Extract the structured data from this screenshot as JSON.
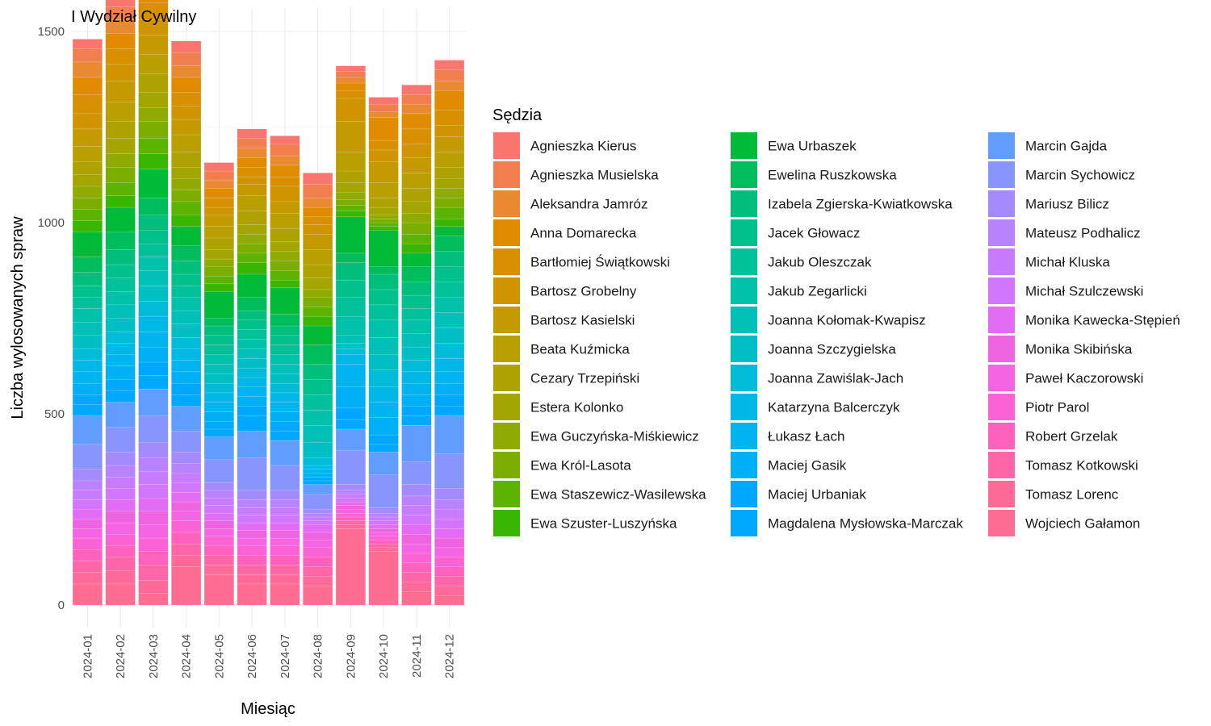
{
  "chart_data": {
    "type": "bar",
    "stacked": true,
    "title": "I Wydział Cywilny",
    "xlabel": "Miesiąc",
    "ylabel": "Liczba wylosowanych spraw",
    "ylim": [
      0,
      1500
    ],
    "yticks": [
      0,
      500,
      1000,
      1500
    ],
    "grid": true,
    "legend_title": "Sędzia",
    "legend_position": "right",
    "categories": [
      "2024-01",
      "2024-02",
      "2024-03",
      "2024-04",
      "2024-05",
      "2024-06",
      "2024-07",
      "2024-08",
      "2024-09",
      "2024-10",
      "2024-11",
      "2024-12"
    ],
    "series": [
      {
        "name": "Agnieszka Kierus",
        "color": "#F8766D",
        "values": [
          25,
          30,
          45,
          30,
          22,
          25,
          22,
          30,
          15,
          18,
          25,
          25
        ]
      },
      {
        "name": "Agnieszka Musielska",
        "color": "#F17E4F",
        "values": [
          35,
          35,
          40,
          35,
          25,
          25,
          30,
          35,
          15,
          20,
          25,
          30
        ]
      },
      {
        "name": "Aleksandra Jamróz",
        "color": "#E98A33",
        "values": [
          40,
          35,
          40,
          30,
          20,
          25,
          25,
          25,
          15,
          15,
          25,
          25
        ]
      },
      {
        "name": "Anna Domarecka",
        "color": "#E08B00",
        "values": [
          45,
          40,
          45,
          40,
          25,
          25,
          30,
          25,
          20,
          60,
          40,
          50
        ]
      },
      {
        "name": "Bartłomiej Świątkowski",
        "color": "#D89000",
        "values": [
          50,
          40,
          45,
          35,
          25,
          25,
          25,
          20,
          20,
          25,
          40,
          40
        ]
      },
      {
        "name": "Bartosz Grobelny",
        "color": "#CF9400",
        "values": [
          40,
          45,
          40,
          35,
          20,
          20,
          40,
          25,
          60,
          30,
          35,
          30
        ]
      },
      {
        "name": "Bartosz Kasielski",
        "color": "#C49A00",
        "values": [
          45,
          55,
          50,
          40,
          30,
          30,
          30,
          40,
          80,
          55,
          40,
          40
        ]
      },
      {
        "name": "Beata Kuźmicka",
        "color": "#B9A000",
        "values": [
          40,
          50,
          50,
          45,
          30,
          40,
          40,
          40,
          50,
          40,
          40,
          40
        ]
      },
      {
        "name": "Cezary Trzepiński",
        "color": "#AEA200",
        "values": [
          35,
          45,
          50,
          40,
          30,
          35,
          35,
          35,
          30,
          25,
          35,
          30
        ]
      },
      {
        "name": "Estera Kolonko",
        "color": "#A3A500",
        "values": [
          30,
          40,
          40,
          30,
          25,
          25,
          25,
          30,
          25,
          20,
          30,
          25
        ]
      },
      {
        "name": "Ewa Guczyńska-Miśkiewicz",
        "color": "#8FAA00",
        "values": [
          30,
          35,
          35,
          30,
          20,
          25,
          25,
          20,
          20,
          10,
          25,
          25
        ]
      },
      {
        "name": "Ewa Król-Lasota",
        "color": "#7CAE00",
        "values": [
          30,
          40,
          45,
          30,
          25,
          25,
          25,
          25,
          15,
          10,
          30,
          25
        ]
      },
      {
        "name": "Ewa Staszewicz-Wasilewska",
        "color": "#5CB300",
        "values": [
          30,
          35,
          40,
          35,
          20,
          25,
          25,
          25,
          15,
          10,
          25,
          30
        ]
      },
      {
        "name": "Ewa Szuster-Luszyńska",
        "color": "#39B600",
        "values": [
          30,
          30,
          40,
          30,
          20,
          30,
          20,
          25,
          15,
          10,
          25,
          20
        ]
      },
      {
        "name": "Ewa Urbaszek",
        "color": "#00BA38",
        "values": [
          65,
          65,
          75,
          50,
          70,
          60,
          70,
          50,
          95,
          95,
          35,
          25
        ]
      },
      {
        "name": "Ewelina Ruszkowska",
        "color": "#00BD5C",
        "values": [
          40,
          45,
          45,
          40,
          20,
          35,
          30,
          50,
          25,
          20,
          40,
          40
        ]
      },
      {
        "name": "Izabela Zgierska-Kwiatkowska",
        "color": "#00BF7D",
        "values": [
          35,
          40,
          40,
          35,
          25,
          25,
          25,
          40,
          45,
          40,
          35,
          40
        ]
      },
      {
        "name": "Jacek Głowacz",
        "color": "#00C08B",
        "values": [
          30,
          35,
          35,
          30,
          25,
          25,
          25,
          40,
          45,
          40,
          35,
          40
        ]
      },
      {
        "name": "Jakub Oleszczak",
        "color": "#00C19A",
        "values": [
          30,
          35,
          35,
          30,
          25,
          25,
          25,
          40,
          50,
          40,
          30,
          40
        ]
      },
      {
        "name": "Jakub Zegarlicki",
        "color": "#00C1AA",
        "values": [
          35,
          35,
          35,
          35,
          25,
          25,
          25,
          40,
          50,
          45,
          35,
          40
        ]
      },
      {
        "name": "Joanna Kołomak-Kwapisz",
        "color": "#00C0B8",
        "values": [
          35,
          35,
          40,
          35,
          25,
          25,
          25,
          45,
          20,
          45,
          35,
          40
        ]
      },
      {
        "name": "Joanna Szczygielska",
        "color": "#00BFC4",
        "values": [
          35,
          35,
          40,
          35,
          25,
          25,
          25,
          40,
          15,
          40,
          35,
          40
        ]
      },
      {
        "name": "Joanna Zawiślak-Jach",
        "color": "#00BCD8",
        "values": [
          30,
          30,
          40,
          30,
          25,
          25,
          25,
          20,
          15,
          45,
          30,
          40
        ]
      },
      {
        "name": "Katarzyna Balcerczyk",
        "color": "#00B8E7",
        "values": [
          30,
          30,
          40,
          30,
          25,
          25,
          25,
          10,
          25,
          40,
          30,
          35
        ]
      },
      {
        "name": "Łukasz Łach",
        "color": "#00B4EF",
        "values": [
          30,
          30,
          40,
          30,
          25,
          25,
          25,
          10,
          60,
          40,
          30,
          30
        ]
      },
      {
        "name": "Maciej Gasik",
        "color": "#00B0F6",
        "values": [
          30,
          35,
          40,
          30,
          25,
          25,
          25,
          10,
          55,
          45,
          30,
          30
        ]
      },
      {
        "name": "Maciej Urbaniak",
        "color": "#00A7FF",
        "values": [
          25,
          30,
          35,
          30,
          20,
          25,
          25,
          10,
          30,
          25,
          25,
          30
        ]
      },
      {
        "name": "Magdalena Mysłowska-Marczak",
        "color": "#00A9FF",
        "values": [
          30,
          30,
          35,
          30,
          20,
          40,
          25,
          10,
          25,
          20,
          25,
          25
        ]
      },
      {
        "name": "Marcin Gajda",
        "color": "#619CFF",
        "values": [
          75,
          65,
          70,
          65,
          60,
          70,
          65,
          25,
          55,
          60,
          95,
          100
        ]
      },
      {
        "name": "Marcin Sychowicz",
        "color": "#8895FF",
        "values": [
          65,
          65,
          70,
          55,
          60,
          85,
          65,
          40,
          90,
          85,
          60,
          90
        ]
      },
      {
        "name": "Mariusz Bilicz",
        "color": "#A58AFF",
        "values": [
          30,
          35,
          40,
          30,
          20,
          25,
          25,
          10,
          15,
          15,
          30,
          30
        ]
      },
      {
        "name": "Mateusz Podhalicz",
        "color": "#B983FF",
        "values": [
          25,
          30,
          35,
          25,
          20,
          20,
          20,
          10,
          10,
          10,
          25,
          25
        ]
      },
      {
        "name": "Michał Kluska",
        "color": "#C77CFF",
        "values": [
          25,
          30,
          35,
          25,
          20,
          20,
          20,
          10,
          10,
          10,
          25,
          25
        ]
      },
      {
        "name": "Michał Szulczewski",
        "color": "#D376FF",
        "values": [
          25,
          30,
          35,
          25,
          20,
          20,
          20,
          10,
          10,
          10,
          25,
          25
        ]
      },
      {
        "name": "Monika Kawecka-Stępień",
        "color": "#E36CF5",
        "values": [
          25,
          30,
          35,
          25,
          20,
          20,
          20,
          20,
          10,
          10,
          25,
          25
        ]
      },
      {
        "name": "Monika Skibińska",
        "color": "#EE64E0",
        "values": [
          25,
          30,
          35,
          25,
          20,
          20,
          20,
          20,
          10,
          10,
          25,
          25
        ]
      },
      {
        "name": "Paweł Kaczorowski",
        "color": "#F564E3",
        "values": [
          25,
          30,
          35,
          25,
          20,
          20,
          20,
          20,
          10,
          10,
          25,
          25
        ]
      },
      {
        "name": "Piotr Parol",
        "color": "#FA62D6",
        "values": [
          30,
          30,
          35,
          30,
          25,
          25,
          25,
          25,
          10,
          10,
          25,
          25
        ]
      },
      {
        "name": "Robert Grzelak",
        "color": "#FF62BC",
        "values": [
          30,
          30,
          35,
          30,
          25,
          25,
          25,
          25,
          10,
          10,
          25,
          25
        ]
      },
      {
        "name": "Tomasz Kotkowski",
        "color": "#FF66A8",
        "values": [
          30,
          35,
          40,
          30,
          25,
          25,
          25,
          25,
          10,
          10,
          25,
          25
        ]
      },
      {
        "name": "Tomasz Lorenc",
        "color": "#FF6A98",
        "values": [
          30,
          35,
          35,
          30,
          25,
          25,
          25,
          25,
          10,
          10,
          25,
          25
        ]
      },
      {
        "name": "Wojciech Gałamon",
        "color": "#FF6C91",
        "values": [
          55,
          55,
          30,
          100,
          80,
          55,
          55,
          50,
          200,
          140,
          35,
          25
        ]
      }
    ]
  }
}
